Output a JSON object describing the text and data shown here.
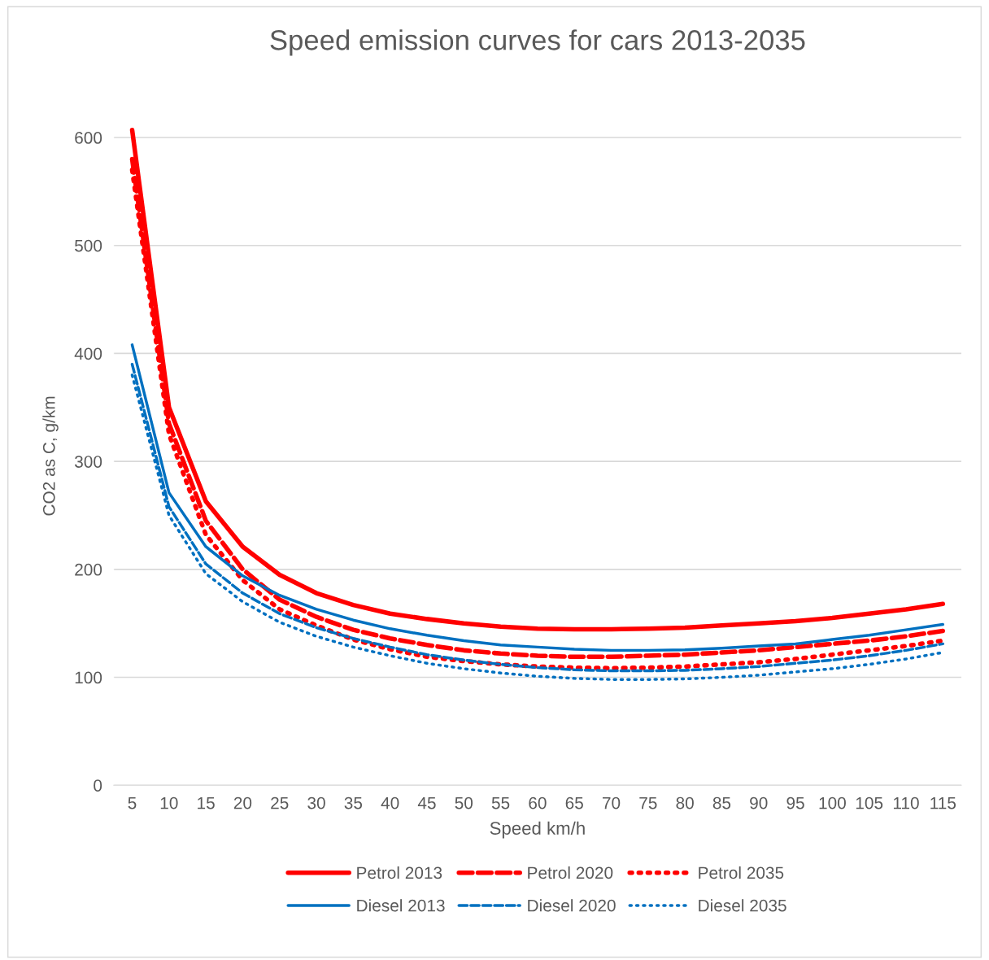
{
  "chart_data": {
    "type": "line",
    "title": "Speed emission curves for cars 2013-2035",
    "xlabel": "Speed km/h",
    "ylabel": "CO2 as C, g/km",
    "categories": [
      "5",
      "10",
      "15",
      "20",
      "25",
      "30",
      "35",
      "40",
      "45",
      "50",
      "55",
      "60",
      "65",
      "70",
      "75",
      "80",
      "85",
      "90",
      "95",
      "100",
      "105",
      "110",
      "115"
    ],
    "ylim": [
      0,
      610
    ],
    "yticks": [
      0,
      100,
      200,
      300,
      400,
      500,
      600
    ],
    "grid": "y",
    "legend": "bottom",
    "marker": "none",
    "series": [
      {
        "name": "Petrol 2013",
        "color": "#ff0000",
        "line_style": "solid",
        "values": [
          607,
          350,
          263,
          221,
          195,
          178,
          167,
          159,
          154,
          150,
          147,
          145,
          144.5,
          144.5,
          145,
          146,
          148,
          150,
          152,
          155,
          159,
          163,
          168
        ]
      },
      {
        "name": "Petrol 2020",
        "color": "#ff0000",
        "line_style": "dashed",
        "values": [
          580,
          335,
          245,
          200,
          172,
          156,
          144,
          136,
          130,
          125,
          122,
          120,
          119,
          119,
          120,
          121,
          123,
          125,
          128,
          131,
          134,
          138,
          143
        ]
      },
      {
        "name": "Petrol 2035",
        "color": "#ff0000",
        "line_style": "dotted",
        "values": [
          570,
          325,
          232,
          190,
          163,
          148,
          135,
          126,
          119,
          115,
          112,
          110,
          109,
          108.5,
          109,
          110,
          112,
          114,
          117,
          121,
          125,
          129,
          134
        ]
      },
      {
        "name": "Diesel 2013",
        "color": "#0070c0",
        "line_style": "solid",
        "values": [
          408,
          271,
          221,
          194,
          176,
          163,
          153,
          145,
          139,
          134,
          130,
          128,
          126,
          125,
          125,
          125.5,
          127,
          129,
          131,
          135,
          139,
          144,
          149
        ]
      },
      {
        "name": "Diesel 2020",
        "color": "#0070c0",
        "line_style": "dashed",
        "values": [
          390,
          258,
          205,
          178,
          159,
          146,
          136,
          128,
          121,
          116,
          112,
          109,
          107,
          106,
          106,
          106.5,
          108,
          110,
          113,
          116,
          120,
          125,
          131
        ]
      },
      {
        "name": "Diesel 2035",
        "color": "#0070c0",
        "line_style": "dotted",
        "values": [
          380,
          250,
          196,
          170,
          151,
          138,
          128,
          120,
          113,
          108,
          104,
          101,
          99,
          98,
          98,
          98.5,
          100,
          102,
          105,
          108,
          112,
          117,
          123
        ]
      }
    ]
  }
}
